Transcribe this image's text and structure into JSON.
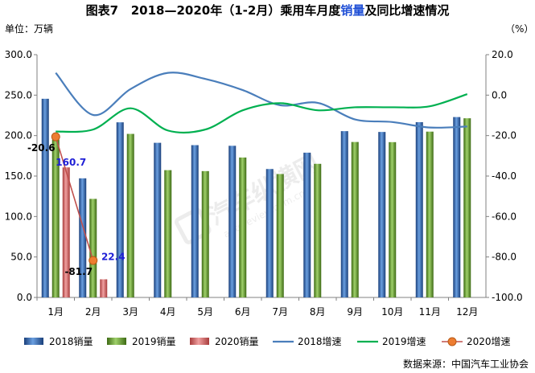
{
  "chart_data": {
    "type": "bar",
    "title_prefix": "图表7",
    "title_main": "2018—2020年（1-2月）乘用车月度",
    "title_highlight": "销量",
    "title_suffix": "及同比增速情况",
    "ylabel": "单位：万辆",
    "y2label": "（%）",
    "ylim": [
      0,
      300
    ],
    "y2lim": [
      -100,
      20
    ],
    "yticks": [
      "300.0",
      "250.0",
      "200.0",
      "150.0",
      "100.0",
      "50.0",
      "0.0"
    ],
    "y2ticks": [
      "20.0",
      "0.0",
      "-20.0",
      "-40.0",
      "-60.0",
      "-80.0",
      "-100.0"
    ],
    "categories": [
      "1月",
      "2月",
      "3月",
      "4月",
      "5月",
      "6月",
      "7月",
      "8月",
      "9月",
      "10月",
      "11月",
      "12月"
    ],
    "bar_series": [
      {
        "name": "2018销量",
        "color": "#2e6fc6",
        "values": [
          245.5,
          147.2,
          216.4,
          191.1,
          188.2,
          187.4,
          158.7,
          178.9,
          205.5,
          204.5,
          216.6,
          222.9
        ]
      },
      {
        "name": "2019销量",
        "color": "#6aa532",
        "values": [
          195.0,
          121.8,
          202.1,
          157.3,
          156.1,
          172.9,
          152.5,
          165.1,
          192.1,
          191.9,
          204.9,
          221.4
        ]
      },
      {
        "name": "2020销量",
        "color": "#e06666",
        "values": [
          160.7,
          22.4,
          null,
          null,
          null,
          null,
          null,
          null,
          null,
          null,
          null,
          null
        ]
      }
    ],
    "line_series": [
      {
        "name": "2018增速",
        "color": "#4a7ebb",
        "values": [
          11.0,
          -9.8,
          3.0,
          11.0,
          8.0,
          2.5,
          -5.0,
          -3.8,
          -12.0,
          -13.3,
          -16.0,
          -15.5
        ]
      },
      {
        "name": "2019增速",
        "color": "#00b050",
        "values": [
          -18.0,
          -17.0,
          -6.5,
          -17.5,
          -17.0,
          -7.5,
          -4.0,
          -7.5,
          -6.0,
          -6.0,
          -5.5,
          0.5
        ]
      },
      {
        "name": "2020增速",
        "color": "#ed7d31",
        "values": [
          -20.6,
          -81.7,
          null,
          null,
          null,
          null,
          null,
          null,
          null,
          null,
          null,
          null
        ]
      }
    ],
    "data_labels": [
      {
        "text": "-20.6",
        "color": "#000000"
      },
      {
        "text": "160.7",
        "color": "#1f1fd6"
      },
      {
        "text": "-81.7",
        "color": "#000000"
      },
      {
        "text": "22.4",
        "color": "#1f1fd6"
      }
    ],
    "legend_position": "bottom",
    "grid": false
  },
  "source": "数据来源：中国汽车工业协会",
  "watermark": "汽车纵横网 autoreview.com.cn"
}
